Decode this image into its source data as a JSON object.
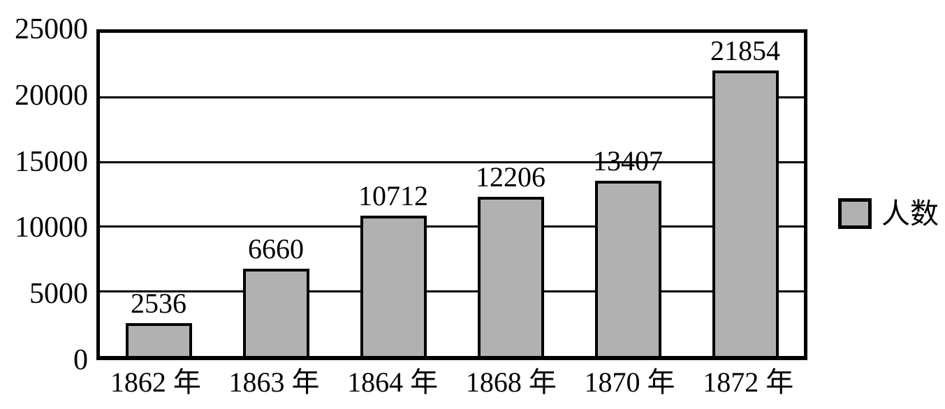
{
  "chart_data": {
    "type": "bar",
    "categories": [
      "1862 年",
      "1863 年",
      "1864 年",
      "1868 年",
      "1870 年",
      "1872 年"
    ],
    "values": [
      2536,
      6660,
      10712,
      12206,
      13407,
      21854
    ],
    "series_name": "人数",
    "title": "",
    "xlabel": "",
    "ylabel": "",
    "ylim": [
      0,
      25000
    ],
    "ytick_interval": 5000,
    "ytick_labels": [
      "25000",
      "20000",
      "15000",
      "10000",
      "5000",
      "0"
    ],
    "grid": true,
    "legend_position": "right",
    "bar_fill_color": "#b1b1b1",
    "bar_border_color": "#000000",
    "background_color": "#ffffff"
  },
  "legend": {
    "label": "人数",
    "swatch_color": "#b1b1b1"
  }
}
